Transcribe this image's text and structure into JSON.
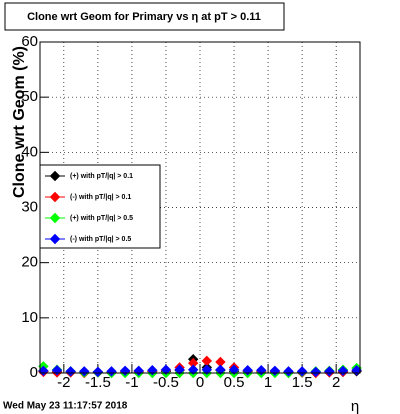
{
  "chart_data": {
    "type": "scatter",
    "title": "Clone wrt Geom for Primary vs   η at pT > 0.11",
    "y_label": "Clone wrt Geom (%)",
    "x_label": "η",
    "timestamp": "Wed May 23 11:17:57 2018",
    "x": [
      -2.3,
      -2.1,
      -1.9,
      -1.7,
      -1.5,
      -1.3,
      -1.1,
      -0.9,
      -0.7,
      -0.5,
      -0.3,
      -0.1,
      0.1,
      0.3,
      0.5,
      0.7,
      0.9,
      1.1,
      1.3,
      1.5,
      1.7,
      1.9,
      2.1,
      2.3
    ],
    "series": [
      {
        "name": "(+) with pT/|q| > 0.1",
        "color": "#000000",
        "values": [
          0.3,
          0.2,
          0.2,
          0.1,
          0.2,
          0.1,
          0.2,
          0.2,
          0.3,
          0.3,
          0.5,
          2.5,
          1.0,
          0.5,
          0.3,
          0.3,
          0.2,
          0.2,
          0.1,
          0.1,
          0.1,
          0.2,
          0.2,
          0.3
        ]
      },
      {
        "name": "(-) with pT/|q| > 0.1",
        "color": "#ff0000",
        "values": [
          0.2,
          0.1,
          0.1,
          0,
          0.1,
          0.1,
          0.2,
          0.2,
          0.3,
          0.5,
          1.0,
          1.8,
          2.2,
          2.0,
          1.0,
          0.4,
          0.2,
          0.2,
          0.1,
          0.1,
          0,
          0.1,
          0.2,
          0.5
        ]
      },
      {
        "name": "(+) with pT/|q| > 0.5",
        "color": "#00ff00",
        "values": [
          1.2,
          0.6,
          0.3,
          0.1,
          0.1,
          0,
          0,
          0,
          0,
          0,
          0,
          0,
          0,
          0,
          0,
          0,
          0,
          0,
          0,
          0.2,
          0.3,
          0.4,
          0.6,
          0.9
        ]
      },
      {
        "name": "(-) with pT/|q| > 0.5",
        "color": "#0000ff",
        "values": [
          0.4,
          0.5,
          0.3,
          0.3,
          0.2,
          0.3,
          0.4,
          0.4,
          0.5,
          0.6,
          0.6,
          0.6,
          0.6,
          0.6,
          0.6,
          0.5,
          0.5,
          0.4,
          0.3,
          0.3,
          0.2,
          0.3,
          0.4,
          0.5
        ]
      }
    ],
    "xlim": [
      -2.35,
      2.35
    ],
    "ylim": [
      0,
      60
    ],
    "xticks": [
      -2,
      -1.5,
      -1,
      -0.5,
      0,
      0.5,
      1,
      1.5,
      2
    ],
    "yticks": [
      0,
      10,
      20,
      30,
      40,
      50,
      60
    ],
    "grid": true
  }
}
